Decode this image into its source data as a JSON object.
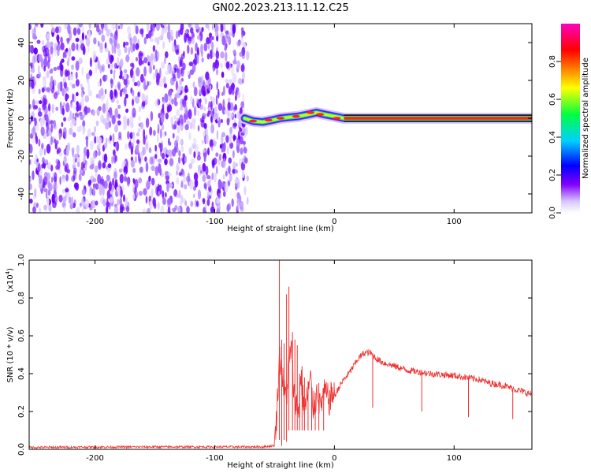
{
  "title": "GN02.2023.213.11.12.C25",
  "chart_data": [
    {
      "type": "heatmap",
      "xlabel": "Height of straight line (km)",
      "ylabel": "Frequency (Hz)",
      "xlim": [
        -255,
        165
      ],
      "ylim": [
        -50,
        50
      ],
      "xticks": [
        -200,
        -100,
        0,
        100
      ],
      "yticks": [
        -40,
        -20,
        0,
        20,
        40
      ],
      "noise_region_x": [
        -255,
        -75
      ],
      "ridge": {
        "x": [
          -75,
          -68,
          -60,
          -52,
          -45,
          -38,
          -30,
          -22,
          -15,
          -8,
          0,
          8,
          20,
          60,
          100,
          165
        ],
        "y": [
          0,
          -1.5,
          -2,
          -1,
          0,
          0.5,
          1,
          2,
          3,
          2,
          1,
          0,
          0,
          0,
          0,
          0
        ]
      },
      "colorbar": {
        "label": "Normalized spectral amplitude",
        "range": [
          0,
          1
        ],
        "ticks": [
          "0.0",
          "0.2",
          "0.4",
          "0.6",
          "0.8"
        ],
        "colormap": "gist_rainbow_white",
        "colors": [
          "#ffffff",
          "#8000ff",
          "#0000ff",
          "#00d0ff",
          "#00ff40",
          "#ffff00",
          "#ff8000",
          "#ff0000",
          "#ff00c0"
        ]
      }
    },
    {
      "type": "line",
      "xlabel": "Height of straight line (km)",
      "ylabel": "SNR (10 * v/v)",
      "scale_label": "(x10",
      "scale_exp": "4",
      "scale_close": ")",
      "xlim": [
        -255,
        165
      ],
      "ylim": [
        0,
        1.0
      ],
      "xticks": [
        -200,
        -100,
        0,
        100
      ],
      "yticks": [
        "0.0",
        "0.2",
        "0.4",
        "0.6",
        "0.8",
        "1.0"
      ],
      "line_color": "#ee3333",
      "envelope": {
        "x": [
          -255,
          -200,
          -150,
          -100,
          -60,
          -50,
          -48,
          -46,
          -44,
          -42,
          -40,
          -38,
          -36,
          -34,
          -32,
          -30,
          -28,
          -26,
          -24,
          -22,
          -20,
          -18,
          -16,
          -14,
          -12,
          -10,
          -8,
          -6,
          -4,
          -2,
          0,
          4,
          8,
          12,
          16,
          20,
          25,
          30,
          35,
          40,
          50,
          60,
          70,
          80,
          90,
          100,
          110,
          120,
          130,
          140,
          150,
          160,
          165
        ],
        "y": [
          0.01,
          0.012,
          0.013,
          0.013,
          0.013,
          0.02,
          0.2,
          0.5,
          0.42,
          0.3,
          0.28,
          0.45,
          0.55,
          0.3,
          0.25,
          0.2,
          0.4,
          0.25,
          0.22,
          0.3,
          0.38,
          0.22,
          0.25,
          0.32,
          0.22,
          0.27,
          0.3,
          0.28,
          0.25,
          0.3,
          0.28,
          0.33,
          0.37,
          0.4,
          0.44,
          0.48,
          0.51,
          0.51,
          0.48,
          0.46,
          0.44,
          0.42,
          0.41,
          0.4,
          0.395,
          0.39,
          0.38,
          0.37,
          0.35,
          0.34,
          0.32,
          0.3,
          0.29
        ]
      },
      "spikes": {
        "x": [
          -46,
          -44,
          -42,
          -40,
          -38,
          -35,
          -33,
          -31,
          -29,
          -27,
          -25,
          -22,
          -19,
          -16,
          -13,
          -9,
          32,
          73,
          112,
          149
        ],
        "y": [
          1.0,
          0.58,
          0.56,
          0.82,
          0.86,
          0.62,
          0.58,
          0.55,
          0.4,
          0.44,
          0.38,
          0.36,
          0.33,
          0.3,
          0.35,
          0.32,
          0.28,
          0.28,
          0.25,
          0.22
        ],
        "down": [
          false,
          false,
          false,
          false,
          false,
          false,
          false,
          false,
          false,
          false,
          false,
          false,
          false,
          false,
          false,
          false,
          true,
          true,
          true,
          true
        ],
        "low": [
          0.05,
          0.02,
          0.05,
          0.04,
          0.1,
          0.1,
          0.1,
          0.1,
          0.1,
          0.1,
          0.1,
          0.1,
          0.1,
          0.1,
          0.1,
          0.1,
          0.22,
          0.2,
          0.17,
          0.16
        ]
      }
    }
  ]
}
